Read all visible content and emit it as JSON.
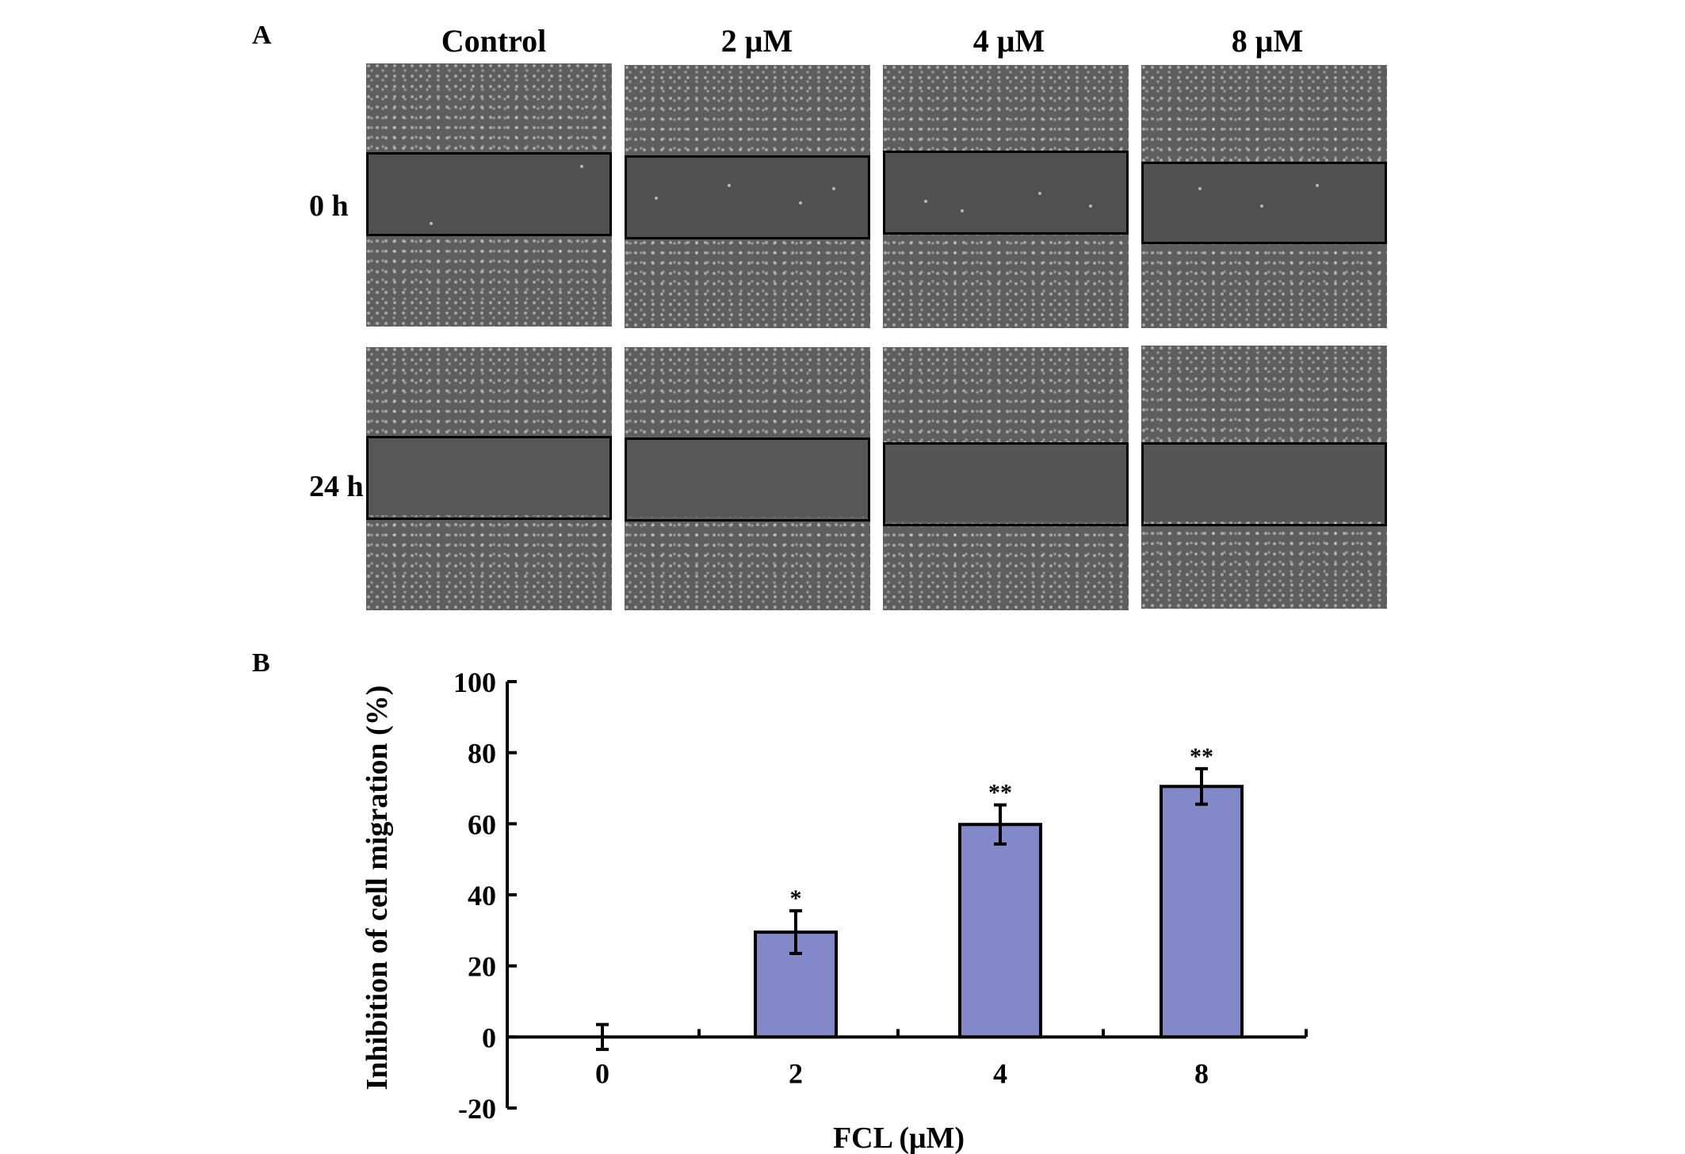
{
  "panel_a": {
    "label": "A",
    "columns": [
      "Control",
      "2  μM",
      "4  μM",
      "8  μM"
    ],
    "rows": [
      "0 h",
      "24 h"
    ]
  },
  "panel_b": {
    "label": "B"
  },
  "chart_data": {
    "type": "bar",
    "categories": [
      "0",
      "2",
      "4",
      "8"
    ],
    "values": [
      0,
      29.5,
      59.8,
      70.5
    ],
    "errors": [
      3.5,
      6,
      5.5,
      5
    ],
    "significance": [
      "",
      "*",
      "**",
      "**"
    ],
    "xlabel": "FCL (μM)",
    "ylabel": "Inhibition of cell migration (%)",
    "ylim": [
      -20,
      100
    ],
    "yticks": [
      -20,
      0,
      20,
      40,
      60,
      80,
      100
    ],
    "bar_color": "#8388c8",
    "grid": false
  }
}
